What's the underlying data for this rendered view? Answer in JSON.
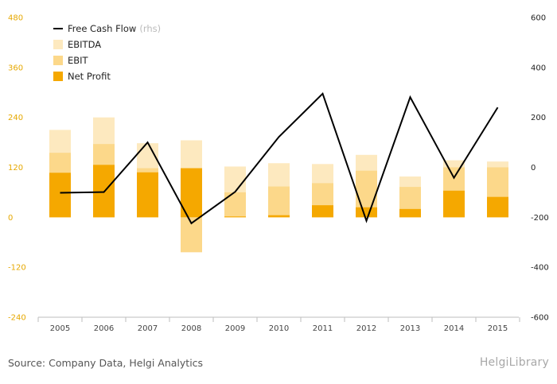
{
  "chart_data": {
    "type": "bar",
    "categories": [
      "2005",
      "2006",
      "2007",
      "2008",
      "2009",
      "2010",
      "2011",
      "2012",
      "2013",
      "2014",
      "2015"
    ],
    "series": [
      {
        "name": "EBITDA",
        "kind": "bar",
        "axis": "left",
        "color": "#fde9bf",
        "values": [
          210,
          240,
          178,
          185,
          122,
          130,
          128,
          150,
          98,
          137,
          134
        ]
      },
      {
        "name": "EBIT",
        "kind": "bar",
        "axis": "left",
        "color": "#fcd88a",
        "values": [
          155,
          176,
          118,
          -84,
          60,
          74,
          82,
          112,
          73,
          120,
          120
        ]
      },
      {
        "name": "Net Profit",
        "kind": "bar",
        "axis": "left",
        "color": "#f5a800",
        "values": [
          107,
          126,
          108,
          118,
          2,
          5,
          29,
          24,
          20,
          64,
          49
        ]
      },
      {
        "name": "Free Cash Flow",
        "note": "(rhs)",
        "kind": "line",
        "axis": "right",
        "color": "#000000",
        "values": [
          -102,
          -99,
          100,
          -224,
          -98,
          122,
          295,
          -214,
          281,
          -42,
          240
        ]
      }
    ],
    "y_left": {
      "ticks": [
        480,
        360,
        240,
        120,
        0,
        -120,
        -240
      ],
      "ylim": [
        -240,
        480
      ]
    },
    "y_right": {
      "ticks": [
        600,
        400,
        200,
        0,
        -200,
        -400,
        -600
      ],
      "ylim": [
        -600,
        600
      ]
    },
    "legend_position": "top-left",
    "grid": false
  },
  "legend": {
    "items": [
      {
        "label": "Free Cash Flow",
        "note": "(rhs)"
      },
      {
        "label": "EBITDA"
      },
      {
        "label": "EBIT"
      },
      {
        "label": "Net Profit"
      }
    ]
  },
  "footer": {
    "source": "Source: Company Data, Helgi Analytics",
    "logo_main": "Helgi",
    "logo_sub": "Library"
  }
}
